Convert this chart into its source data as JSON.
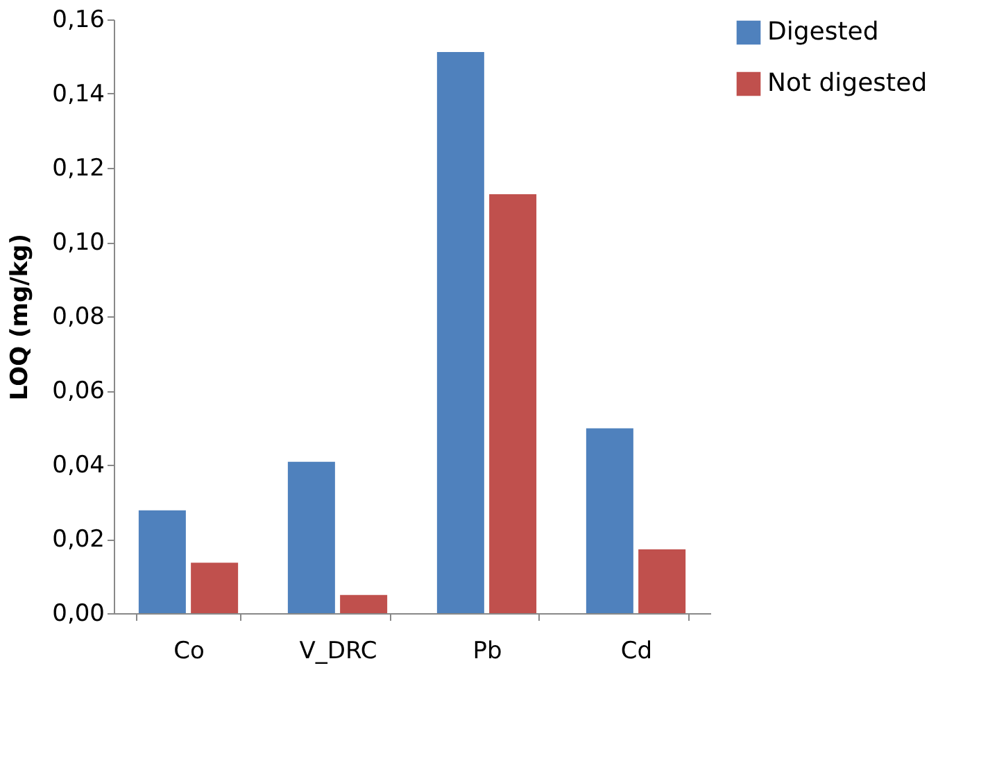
{
  "chart_data": {
    "type": "bar",
    "ylabel": "LOQ (mg/kg)",
    "categories": [
      "Co",
      "V_DRC",
      "Pb",
      "Cd"
    ],
    "series": [
      {
        "name": "Digested",
        "color": "#4f81bd",
        "values": [
          0.0277,
          0.0408,
          0.1512,
          0.0498
        ]
      },
      {
        "name": "Not digested",
        "color": "#c0504d",
        "values": [
          0.0136,
          0.0049,
          0.1129,
          0.0172
        ]
      }
    ],
    "ylim": [
      0,
      0.16
    ],
    "yticks": [
      {
        "value": 0,
        "label": "0,00"
      },
      {
        "value": 0.02,
        "label": "0,02"
      },
      {
        "value": 0.04,
        "label": "0,04"
      },
      {
        "value": 0.06,
        "label": "0,06"
      },
      {
        "value": 0.08,
        "label": "0,08"
      },
      {
        "value": 0.1,
        "label": "0,10"
      },
      {
        "value": 0.12,
        "label": "0,12"
      },
      {
        "value": 0.14,
        "label": "0,14"
      },
      {
        "value": 0.16,
        "label": "0,16"
      }
    ],
    "grid": false,
    "legend": "right"
  }
}
